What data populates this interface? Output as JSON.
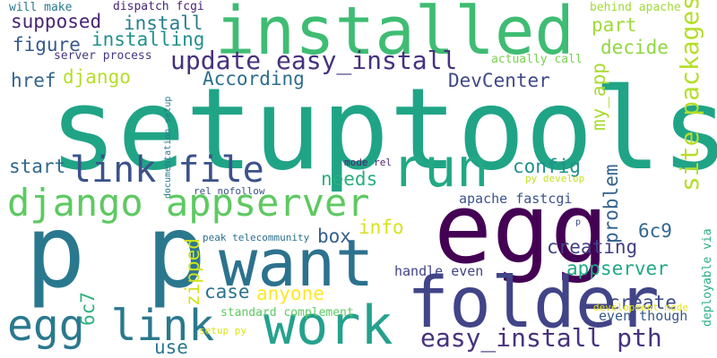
{
  "words": [
    {
      "text": "setuptools",
      "color": "#20a486"
    },
    {
      "text": "installed",
      "color": "#3fbc73"
    },
    {
      "text": "egg",
      "color": "#440154"
    },
    {
      "text": "p p",
      "color": "#2a788e"
    },
    {
      "text": "want",
      "color": "#2c728e"
    },
    {
      "text": "folder",
      "color": "#414487"
    },
    {
      "text": "work",
      "color": "#25a18e"
    },
    {
      "text": "run",
      "color": "#22a884"
    },
    {
      "text": "egg link",
      "color": "#2a788e"
    },
    {
      "text": "django appserver",
      "color": "#5ec962"
    },
    {
      "text": "link file",
      "color": "#3b528b"
    },
    {
      "text": "site packages",
      "color": "#b5de2b"
    },
    {
      "text": "update easy_install",
      "color": "#46327e"
    },
    {
      "text": "easy_install pth",
      "color": "#46327e"
    },
    {
      "text": "supposed",
      "color": "#482475"
    },
    {
      "text": "install",
      "color": "#277f8e"
    },
    {
      "text": "installing",
      "color": "#21918c"
    },
    {
      "text": "figure",
      "color": "#38598c"
    },
    {
      "text": "will make",
      "color": "#29798e"
    },
    {
      "text": "dispatch fcgi",
      "color": "#482677"
    },
    {
      "text": "behind apache",
      "color": "#a2da37"
    },
    {
      "text": "part",
      "color": "#a0da39"
    },
    {
      "text": "decide",
      "color": "#90d743"
    },
    {
      "text": "According",
      "color": "#2e6e8e"
    },
    {
      "text": "DevCenter",
      "color": "#3f4889"
    },
    {
      "text": "django",
      "color": "#b5de2b"
    },
    {
      "text": "href",
      "color": "#33638d"
    },
    {
      "text": "my_app",
      "color": "#a8db34"
    },
    {
      "text": "server process",
      "color": "#453781"
    },
    {
      "text": "actually call",
      "color": "#7ad151"
    },
    {
      "text": "documentation setup",
      "color": "#2a788e"
    },
    {
      "text": "start",
      "color": "#31688e"
    },
    {
      "text": "config",
      "color": "#21918c"
    },
    {
      "text": "needs",
      "color": "#29af7f"
    },
    {
      "text": "problem",
      "color": "#33638d"
    },
    {
      "text": "py develop",
      "color": "#c2df23"
    },
    {
      "text": "mode rel",
      "color": "#481f70"
    },
    {
      "text": "rel nofollow",
      "color": "#3b528b"
    },
    {
      "text": "apache fastcgi",
      "color": "#3b528b"
    },
    {
      "text": "info",
      "color": "#d8e219"
    },
    {
      "text": "box",
      "color": "#355f8d"
    },
    {
      "text": "6c9",
      "color": "#31688e"
    },
    {
      "text": "creating",
      "color": "#424086"
    },
    {
      "text": "p",
      "color": "#3e4a89"
    },
    {
      "text": "deployable via",
      "color": "#29af7f"
    },
    {
      "text": "zipped",
      "color": "#d2e21b"
    },
    {
      "text": "peak telecommunity",
      "color": "#2d708e"
    },
    {
      "text": "appserver",
      "color": "#22a884"
    },
    {
      "text": "handle even",
      "color": "#414487"
    },
    {
      "text": "case",
      "color": "#2c728e"
    },
    {
      "text": "anyone",
      "color": "#fde725"
    },
    {
      "text": "6c7",
      "color": "#2db27d"
    },
    {
      "text": "create",
      "color": "#3e4989"
    },
    {
      "text": "development mode",
      "color": "#e5e419"
    },
    {
      "text": "standard complement",
      "color": "#5ec962"
    },
    {
      "text": "even though",
      "color": "#38598c"
    },
    {
      "text": "setup py",
      "color": "#dde318"
    },
    {
      "text": "use",
      "color": "#2a788e"
    }
  ]
}
